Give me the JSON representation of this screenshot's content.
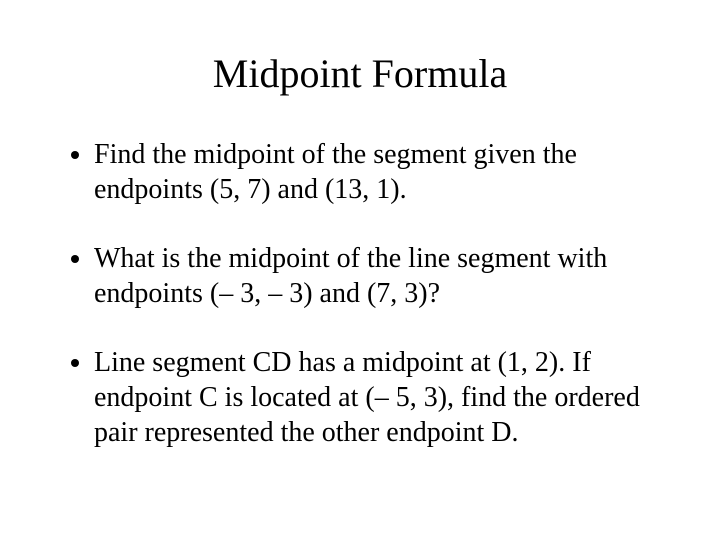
{
  "slide": {
    "title": "Midpoint Formula",
    "title_fontsize": 40,
    "body_fontsize": 28,
    "background_color": "#ffffff",
    "text_color": "#000000",
    "font_family": "Times New Roman",
    "bullets": [
      "Find the midpoint of the segment given the endpoints (5, 7) and (13, 1).",
      "What is the midpoint of the line segment with endpoints (– 3, – 3) and (7, 3)?",
      "Line segment CD has a midpoint at (1, 2).  If endpoint C is located at (– 5, 3), find the ordered pair represented the other endpoint D."
    ]
  }
}
